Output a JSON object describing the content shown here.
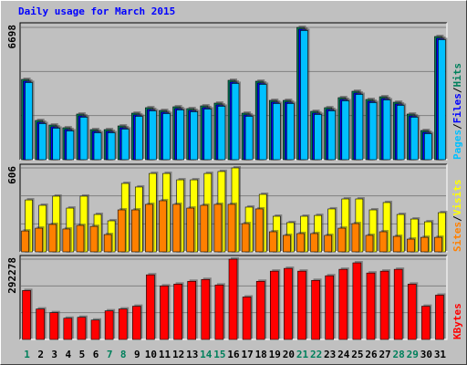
{
  "chart_data": [
    {
      "type": "bar",
      "title": "Daily usage for March 2015",
      "title_color": "#0000ff",
      "ylim": [
        0,
        6698
      ],
      "yticks": [
        6698
      ],
      "legend_separator": "/",
      "series": [
        {
          "name": "Hits",
          "color": "#00805c",
          "values": [
            4065,
            1986,
            1755,
            1617,
            2310,
            1524,
            1524,
            1709,
            2356,
            2633,
            2494,
            2679,
            2587,
            2725,
            2864,
            4019,
            2356,
            3973,
            3003,
            3003,
            6698,
            2448,
            2633,
            3141,
            3464,
            3049,
            3187,
            2910,
            2310,
            1478,
            6236
          ]
        },
        {
          "name": "Files",
          "color": "#0000ff",
          "values": [
            3975,
            1896,
            1665,
            1527,
            2220,
            1434,
            1434,
            1619,
            2266,
            2543,
            2404,
            2589,
            2497,
            2635,
            2774,
            3929,
            2266,
            3883,
            2913,
            2913,
            6608,
            2358,
            2543,
            3051,
            3374,
            2959,
            3097,
            2820,
            2220,
            1388,
            6146
          ]
        },
        {
          "name": "Pages",
          "color": "#00c0ff",
          "values": [
            3905,
            1826,
            1595,
            1457,
            2150,
            1364,
            1364,
            1549,
            2196,
            2473,
            2334,
            2519,
            2427,
            2565,
            2704,
            3859,
            2196,
            3813,
            2843,
            2843,
            6538,
            2288,
            2473,
            2981,
            3304,
            2889,
            3027,
            2750,
            2150,
            1318,
            6076
          ]
        }
      ]
    },
    {
      "type": "bar",
      "ylim": [
        0,
        606
      ],
      "yticks": [
        606
      ],
      "series": [
        {
          "name": "Visits",
          "color": "#ffff00",
          "values": [
            375,
            336,
            402,
            316,
            402,
            270,
            224,
            494,
            468,
            566,
            566,
            520,
            520,
            566,
            580,
            606,
            323,
            415,
            257,
            211,
            257,
            263,
            310,
            382,
            382,
            303,
            356,
            270,
            237,
            217,
            283
          ]
        },
        {
          "name": "Sites",
          "color": "#ff8000",
          "values": [
            151,
            171,
            198,
            165,
            191,
            184,
            125,
            303,
            303,
            343,
            369,
            343,
            316,
            336,
            343,
            343,
            204,
            310,
            145,
            119,
            132,
            132,
            119,
            171,
            204,
            119,
            145,
            112,
            92,
            105,
            105
          ]
        }
      ]
    },
    {
      "type": "bar",
      "ylim": [
        0,
        292278
      ],
      "yticks": [
        292278
      ],
      "categories": [
        "1",
        "2",
        "3",
        "4",
        "5",
        "6",
        "7",
        "8",
        "9",
        "10",
        "11",
        "12",
        "13",
        "14",
        "15",
        "16",
        "17",
        "18",
        "19",
        "20",
        "21",
        "22",
        "23",
        "24",
        "25",
        "26",
        "27",
        "28",
        "29",
        "30",
        "31"
      ],
      "category_colors": [
        "#00805c",
        "#000000",
        "#000000",
        "#000000",
        "#000000",
        "#000000",
        "#00805c",
        "#00805c",
        "#000000",
        "#000000",
        "#000000",
        "#000000",
        "#000000",
        "#00805c",
        "#00805c",
        "#000000",
        "#000000",
        "#000000",
        "#000000",
        "#000000",
        "#00805c",
        "#00805c",
        "#000000",
        "#000000",
        "#000000",
        "#000000",
        "#000000",
        "#00805c",
        "#00805c",
        "#000000",
        "#000000"
      ],
      "series": [
        {
          "name": "KBytes",
          "color": "#ff0000",
          "values": [
            178054,
            110864,
            97426,
            77270,
            80629,
            70549,
            104145,
            110864,
            120942,
            235166,
            194852,
            201571,
            211650,
            218368,
            198211,
            292278,
            154538,
            211650,
            248603,
            258682,
            248603,
            215009,
            231806,
            255322,
            278840,
            241885,
            248603,
            255322,
            201571,
            120942,
            161257
          ]
        }
      ]
    }
  ]
}
